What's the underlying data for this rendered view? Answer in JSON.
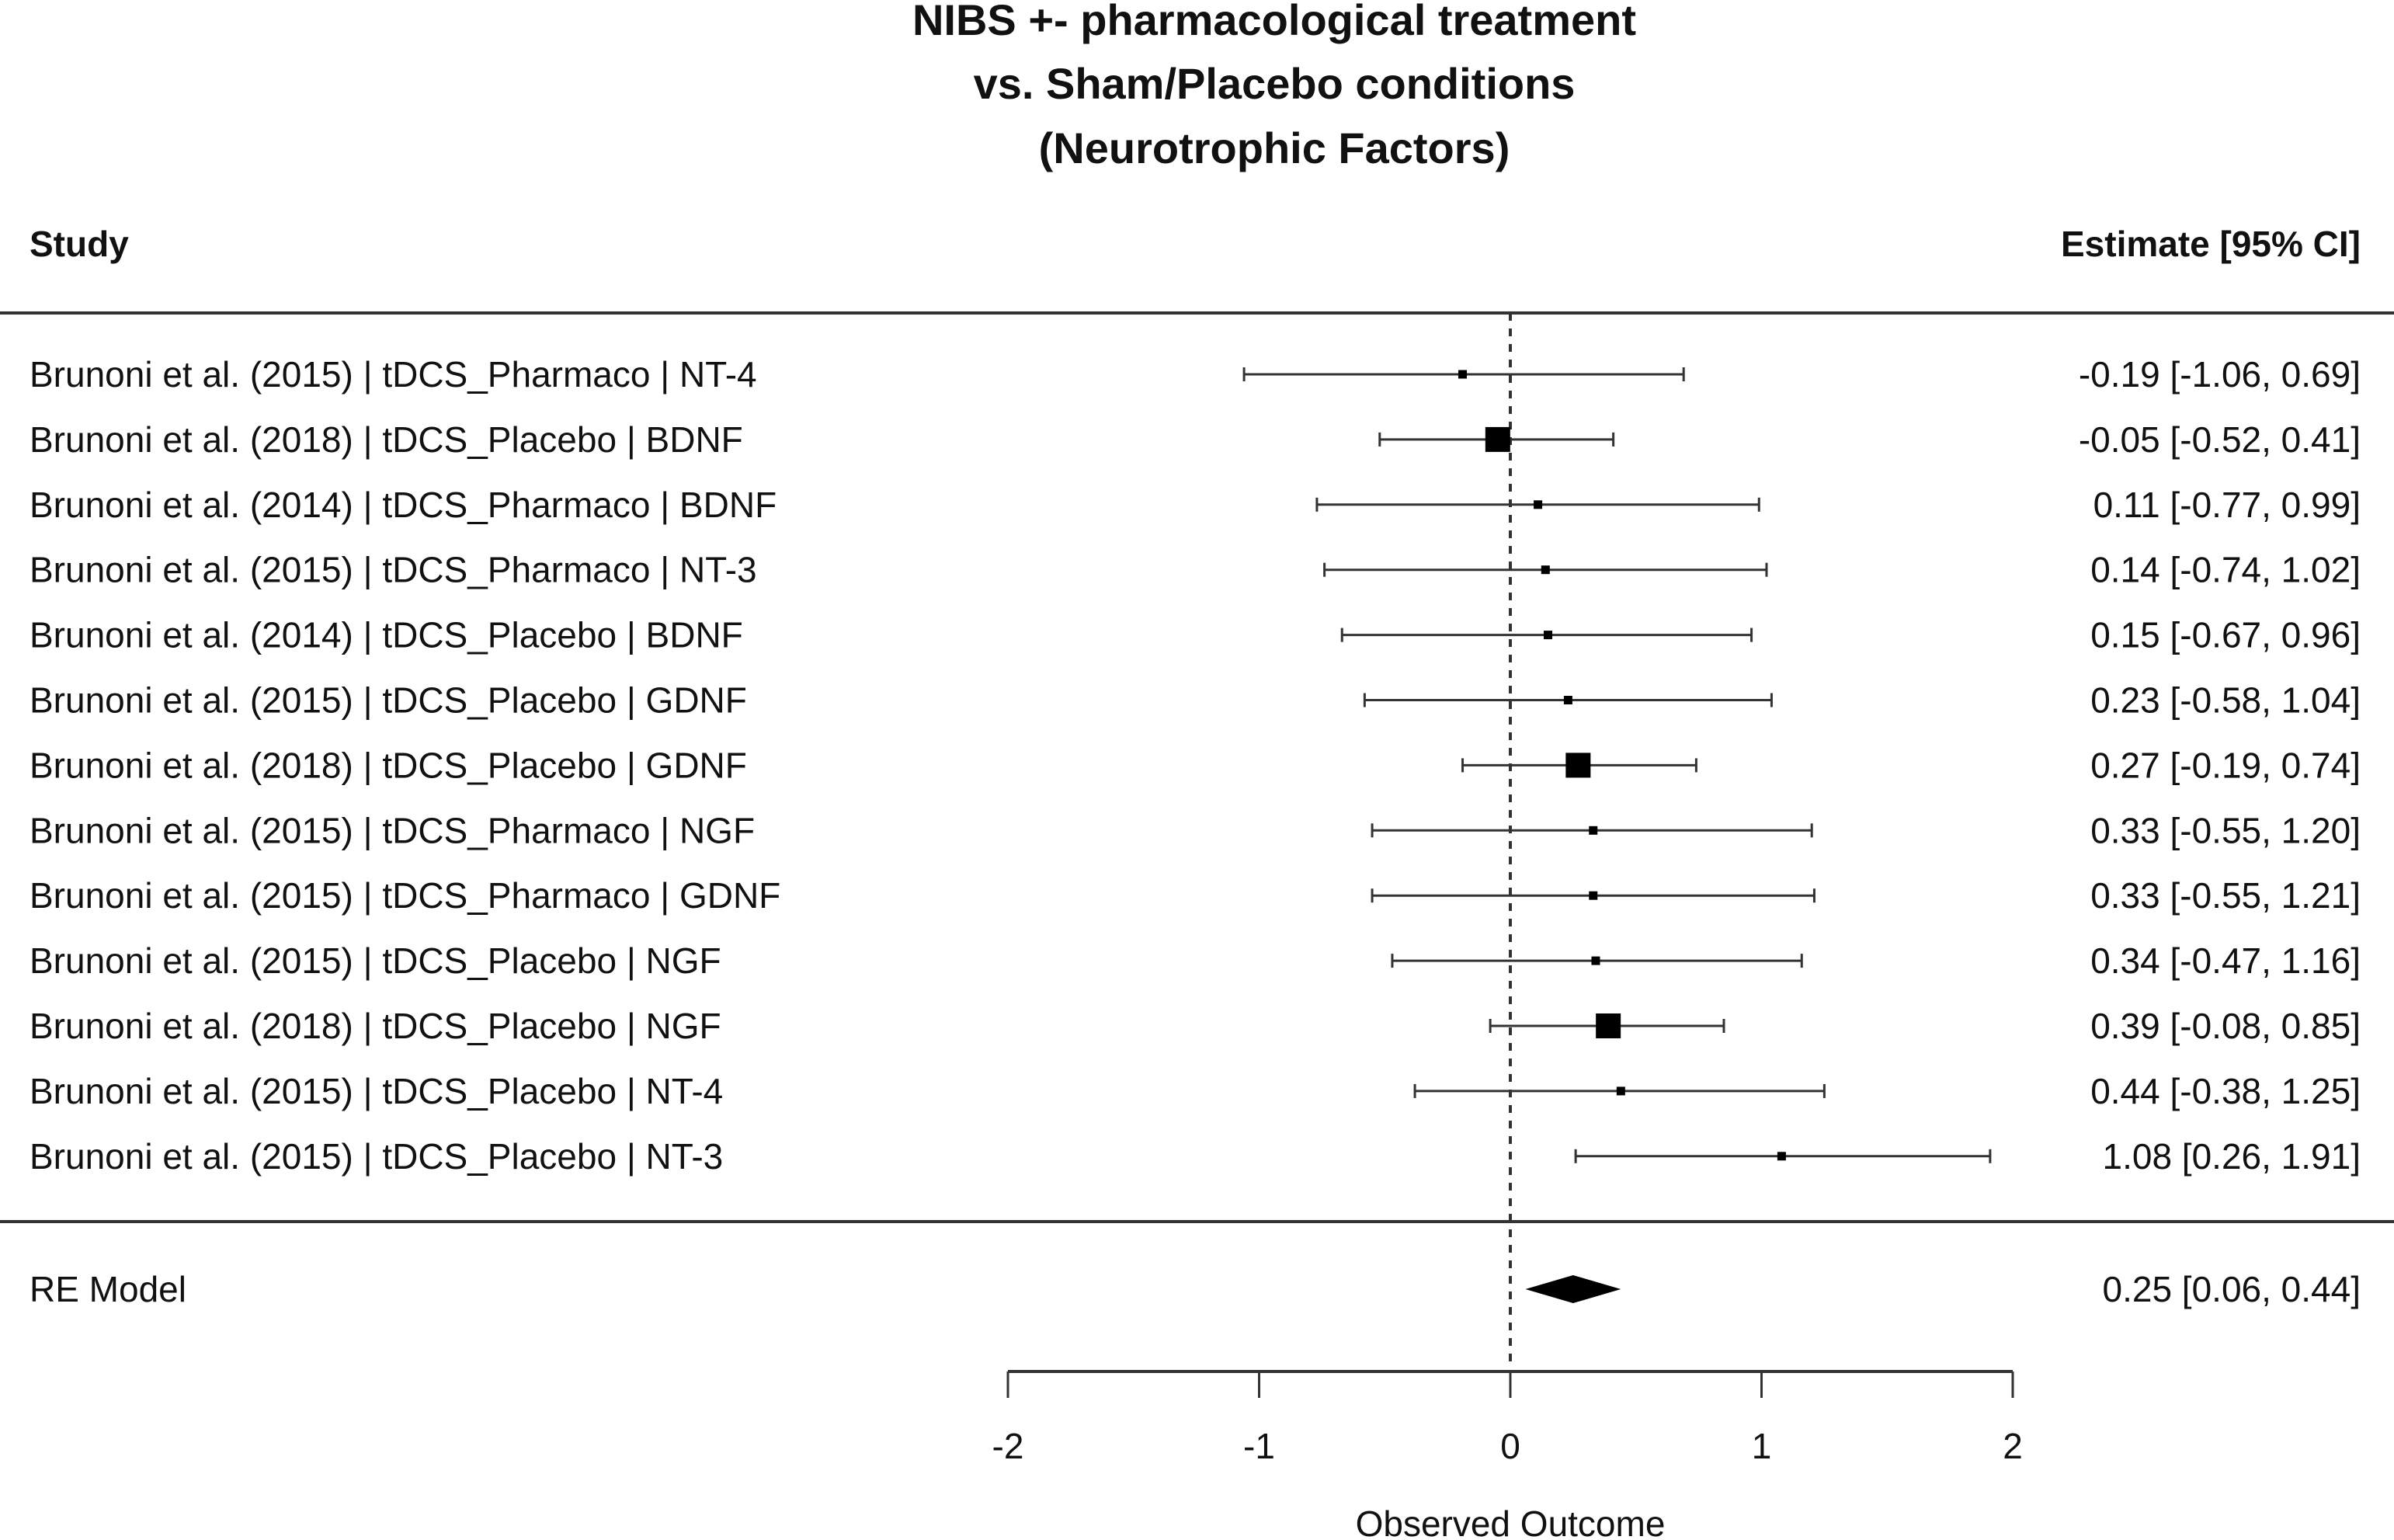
{
  "chart_data": {
    "type": "forest",
    "title": [
      "NIBS +- pharmacological treatment",
      "vs. Sham/Placebo conditions",
      "(Neurotrophic Factors)"
    ],
    "header_left": "Study",
    "header_right": "Estimate [95% CI]",
    "xlabel": "Observed Outcome",
    "xlim": [
      -2,
      2
    ],
    "xticks": [
      "-2",
      "-1",
      "0",
      "1",
      "2"
    ],
    "reference_line": 0,
    "studies": [
      {
        "label": "Brunoni et al. (2015) | tDCS_Pharmaco | NT-4",
        "estimate": -0.19,
        "lower": -1.06,
        "upper": 0.69,
        "text": "-0.19 [-1.06, 0.69]"
      },
      {
        "label": "Brunoni et al. (2018) | tDCS_Placebo | BDNF",
        "estimate": -0.05,
        "lower": -0.52,
        "upper": 0.41,
        "text": "-0.05 [-0.52, 0.41]"
      },
      {
        "label": "Brunoni et al. (2014) | tDCS_Pharmaco | BDNF",
        "estimate": 0.11,
        "lower": -0.77,
        "upper": 0.99,
        "text": "0.11 [-0.77, 0.99]"
      },
      {
        "label": "Brunoni et al. (2015) | tDCS_Pharmaco | NT-3",
        "estimate": 0.14,
        "lower": -0.74,
        "upper": 1.02,
        "text": "0.14 [-0.74, 1.02]"
      },
      {
        "label": "Brunoni et al. (2014) | tDCS_Placebo | BDNF",
        "estimate": 0.15,
        "lower": -0.67,
        "upper": 0.96,
        "text": "0.15 [-0.67, 0.96]"
      },
      {
        "label": "Brunoni et al. (2015) | tDCS_Placebo | GDNF",
        "estimate": 0.23,
        "lower": -0.58,
        "upper": 1.04,
        "text": "0.23 [-0.58, 1.04]"
      },
      {
        "label": "Brunoni et al. (2018) | tDCS_Placebo | GDNF",
        "estimate": 0.27,
        "lower": -0.19,
        "upper": 0.74,
        "text": "0.27 [-0.19, 0.74]"
      },
      {
        "label": "Brunoni et al. (2015) | tDCS_Pharmaco | NGF",
        "estimate": 0.33,
        "lower": -0.55,
        "upper": 1.2,
        "text": "0.33 [-0.55, 1.20]"
      },
      {
        "label": "Brunoni et al. (2015) | tDCS_Pharmaco | GDNF",
        "estimate": 0.33,
        "lower": -0.55,
        "upper": 1.21,
        "text": "0.33 [-0.55, 1.21]"
      },
      {
        "label": "Brunoni et al. (2015) | tDCS_Placebo | NGF",
        "estimate": 0.34,
        "lower": -0.47,
        "upper": 1.16,
        "text": "0.34 [-0.47, 1.16]"
      },
      {
        "label": "Brunoni et al. (2018) | tDCS_Placebo | NGF",
        "estimate": 0.39,
        "lower": -0.08,
        "upper": 0.85,
        "text": "0.39 [-0.08, 0.85]"
      },
      {
        "label": "Brunoni et al. (2015) | tDCS_Placebo | NT-4",
        "estimate": 0.44,
        "lower": -0.38,
        "upper": 1.25,
        "text": "0.44 [-0.38, 1.25]"
      },
      {
        "label": "Brunoni et al. (2015) | tDCS_Placebo | NT-3",
        "estimate": 1.08,
        "lower": 0.26,
        "upper": 1.91,
        "text": "1.08 [0.26, 1.91]"
      }
    ],
    "summary": {
      "label": "RE Model",
      "estimate": 0.25,
      "lower": 0.06,
      "upper": 0.44,
      "text": "0.25 [0.06, 0.44]"
    }
  }
}
